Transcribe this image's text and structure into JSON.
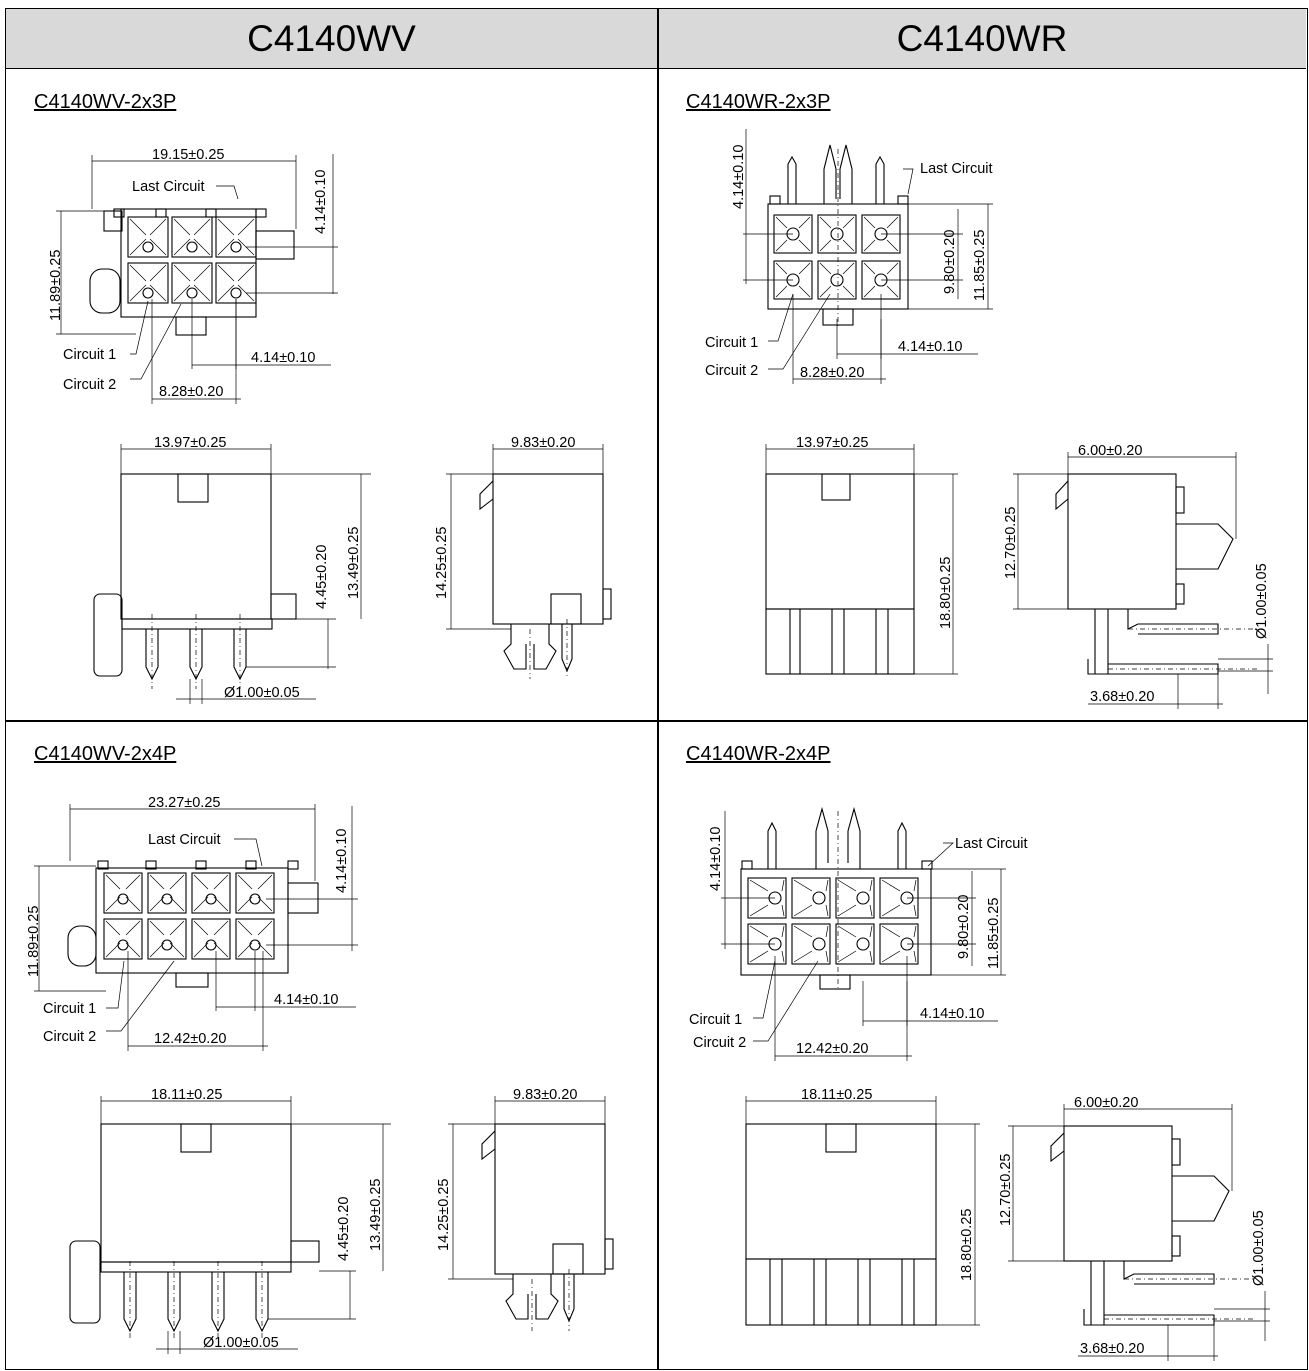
{
  "headers": {
    "left": "C4140WV",
    "right": "C4140WR"
  },
  "cells": {
    "wv3": {
      "title": "C4140WV-2x3P",
      "dims": {
        "width": "19.15±0.25",
        "pitch_v": "4.14±0.10",
        "height": "11.89±0.25",
        "pitch_h": "4.14±0.10",
        "span": "8.28±0.20",
        "body_w": "13.97±0.25",
        "side_w": "9.83±0.20",
        "pin_stub": "4.45±0.20",
        "body_h": "13.49±0.25",
        "side_h": "14.25±0.25",
        "pin_dia": "Ø1.00±0.05"
      },
      "labels": {
        "last": "Last Circuit",
        "c1": "Circuit 1",
        "c2": "Circuit 2"
      }
    },
    "wr3": {
      "title": "C4140WR-2x3P",
      "dims": {
        "pitch_v": "4.14±0.10",
        "inner_h": "9.80±0.20",
        "outer_h": "11.85±0.25",
        "pitch_h": "4.14±0.10",
        "span": "8.28±0.20",
        "body_w": "13.97±0.25",
        "body_h": "18.80±0.25",
        "side_w": "6.00±0.20",
        "side_h": "12.70±0.25",
        "pin_dia": "Ø1.00±0.05",
        "pin_off": "3.68±0.20"
      },
      "labels": {
        "last": "Last Circuit",
        "c1": "Circuit 1",
        "c2": "Circuit 2"
      }
    },
    "wv4": {
      "title": "C4140WV-2x4P",
      "dims": {
        "width": "23.27±0.25",
        "pitch_v": "4.14±0.10",
        "height": "11.89±0.25",
        "pitch_h": "4.14±0.10",
        "span": "12.42±0.20",
        "body_w": "18.11±0.25",
        "side_w": "9.83±0.20",
        "pin_stub": "4.45±0.20",
        "body_h": "13.49±0.25",
        "side_h": "14.25±0.25",
        "pin_dia": "Ø1.00±0.05"
      },
      "labels": {
        "last": "Last Circuit",
        "c1": "Circuit 1",
        "c2": "Circuit 2"
      }
    },
    "wr4": {
      "title": "C4140WR-2x4P",
      "dims": {
        "pitch_v": "4.14±0.10",
        "inner_h": "9.80±0.20",
        "outer_h": "11.85±0.25",
        "pitch_h": "4.14±0.10",
        "span": "12.42±0.20",
        "body_w": "18.11±0.25",
        "body_h": "18.80±0.25",
        "side_w": "6.00±0.20",
        "side_h": "12.70±0.25",
        "pin_dia": "Ø1.00±0.05",
        "pin_off": "3.68±0.20"
      },
      "labels": {
        "last": "Last Circuit",
        "c1": "Circuit 1",
        "c2": "Circuit 2"
      }
    }
  }
}
